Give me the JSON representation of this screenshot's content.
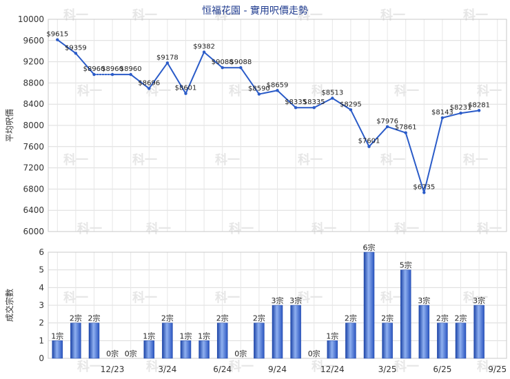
{
  "chart_data": [
    {
      "type": "line",
      "title": "恒福花園 - 實用呎價走勢",
      "ylabel": "平均呎價",
      "ylim": [
        6000,
        10000
      ],
      "yticks": [
        6000,
        6400,
        6800,
        7200,
        7600,
        8000,
        8400,
        8800,
        9200,
        9600,
        10000
      ],
      "x_tick_labels": [
        "12/23",
        "3/24",
        "6/24",
        "9/24",
        "12/24",
        "3/25",
        "6/25",
        "9/25"
      ],
      "months": [
        "9/23",
        "10/23",
        "11/23",
        "12/23",
        "1/24",
        "2/24",
        "3/24",
        "4/24",
        "5/24",
        "6/24",
        "7/24",
        "8/24",
        "9/24",
        "10/24",
        "11/24",
        "12/24",
        "1/25",
        "2/25",
        "3/25",
        "4/25",
        "5/25",
        "6/25",
        "7/25",
        "8/25",
        "9/25"
      ],
      "values": [
        9615,
        9359,
        8960,
        8960,
        8960,
        8696,
        9178,
        8601,
        9382,
        9088,
        9088,
        8590,
        8659,
        8335,
        8335,
        8513,
        8295,
        7601,
        7976,
        7861,
        6735,
        8143,
        8231,
        8281,
        null
      ],
      "point_labels": [
        "$9615",
        "$9359",
        "$8960",
        "$8960",
        "$8960",
        "$8696",
        "$9178",
        "$8601",
        "$9382",
        "$9088",
        "$9088",
        "$8590",
        "$8659",
        "$8335",
        "$8335",
        "$8513",
        "$8295",
        "$7601",
        "$7976",
        "$7861",
        "$6735",
        "$8143",
        "$8231",
        "$8281",
        ""
      ],
      "interpolated": [
        false,
        false,
        true,
        true,
        false,
        false,
        false,
        false,
        false,
        false,
        true,
        false,
        false,
        false,
        true,
        false,
        false,
        false,
        false,
        false,
        false,
        false,
        false,
        false,
        false
      ],
      "color": "#2a5bc8"
    },
    {
      "type": "bar",
      "ylabel": "成交宗數",
      "ylim": [
        0,
        6
      ],
      "yticks": [
        0,
        1,
        2,
        3,
        4,
        5,
        6
      ],
      "values": [
        1,
        2,
        2,
        0,
        0,
        1,
        2,
        1,
        1,
        2,
        0,
        2,
        3,
        3,
        0,
        1,
        2,
        6,
        2,
        5,
        3,
        2,
        2,
        3
      ],
      "bar_labels": [
        "1宗",
        "2宗",
        "2宗",
        "0宗",
        "0宗",
        "1宗",
        "2宗",
        "1宗",
        "1宗",
        "2宗",
        "0宗",
        "2宗",
        "3宗",
        "3宗",
        "0宗",
        "1宗",
        "2宗",
        "6宗",
        "2宗",
        "5宗",
        "3宗",
        "2宗",
        "2宗",
        "3宗"
      ],
      "color": "#2f5fc9"
    }
  ],
  "watermark": "科一"
}
